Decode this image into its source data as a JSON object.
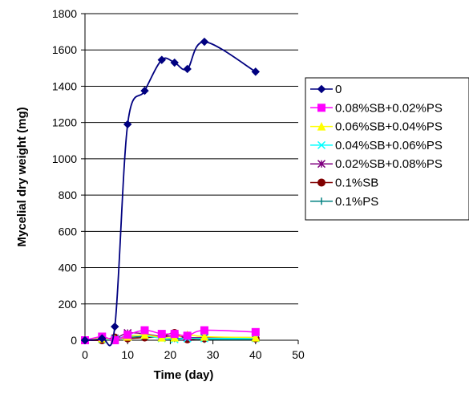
{
  "chart_data": {
    "type": "line",
    "title": "",
    "xlabel": "Time (day)",
    "ylabel": "Mycelial dry weight (mg)",
    "xlim": [
      0,
      50
    ],
    "ylim": [
      0,
      1800
    ],
    "xticks": [
      0,
      10,
      20,
      30,
      40,
      50
    ],
    "yticks": [
      0,
      200,
      400,
      600,
      800,
      1000,
      1200,
      1400,
      1600,
      1800
    ],
    "grid": "horizontal",
    "legend_position": "right",
    "series": [
      {
        "name": "0",
        "color": "#000080",
        "marker": "diamond",
        "points": [
          [
            0,
            0
          ],
          [
            4,
            10
          ],
          [
            7,
            75
          ],
          [
            10,
            1190
          ],
          [
            14,
            1375
          ],
          [
            18,
            1545
          ],
          [
            21,
            1530
          ],
          [
            24,
            1495
          ],
          [
            28,
            1645
          ],
          [
            40,
            1480
          ]
        ]
      },
      {
        "name": "0.08%SB+0.02%PS",
        "color": "#ff00ff",
        "marker": "square",
        "points": [
          [
            0,
            0
          ],
          [
            4,
            20
          ],
          [
            7,
            0
          ],
          [
            10,
            30
          ],
          [
            14,
            55
          ],
          [
            18,
            35
          ],
          [
            21,
            35
          ],
          [
            24,
            25
          ],
          [
            28,
            55
          ],
          [
            40,
            45
          ]
        ]
      },
      {
        "name": "0.06%SB+0.04%PS",
        "color": "#ffff00",
        "marker": "triangle",
        "points": [
          [
            0,
            0
          ],
          [
            4,
            10
          ],
          [
            7,
            5
          ],
          [
            10,
            20
          ],
          [
            14,
            30
          ],
          [
            18,
            15
          ],
          [
            21,
            15
          ],
          [
            24,
            30
          ],
          [
            28,
            20
          ],
          [
            40,
            15
          ]
        ]
      },
      {
        "name": "0.04%SB+0.06%PS",
        "color": "#00ffff",
        "marker": "x",
        "points": [
          [
            0,
            0
          ],
          [
            4,
            5
          ],
          [
            7,
            5
          ],
          [
            10,
            25
          ],
          [
            14,
            25
          ],
          [
            18,
            10
          ],
          [
            21,
            5
          ],
          [
            24,
            10
          ],
          [
            28,
            10
          ],
          [
            40,
            10
          ]
        ]
      },
      {
        "name": "0.02%SB+0.08%PS",
        "color": "#800080",
        "marker": "star",
        "points": [
          [
            0,
            0
          ],
          [
            4,
            10
          ],
          [
            7,
            10
          ],
          [
            10,
            40
          ],
          [
            14,
            35
          ],
          [
            18,
            20
          ],
          [
            21,
            25
          ],
          [
            24,
            15
          ],
          [
            28,
            15
          ],
          [
            40,
            15
          ]
        ]
      },
      {
        "name": "0.1%SB",
        "color": "#800000",
        "marker": "circle",
        "points": [
          [
            0,
            0
          ],
          [
            4,
            0
          ],
          [
            7,
            15
          ],
          [
            10,
            10
          ],
          [
            14,
            15
          ],
          [
            18,
            20
          ],
          [
            21,
            40
          ],
          [
            24,
            5
          ],
          [
            28,
            10
          ],
          [
            40,
            10
          ]
        ]
      },
      {
        "name": "0.1%PS",
        "color": "#008080",
        "marker": "plus",
        "points": [
          [
            0,
            0
          ],
          [
            4,
            5
          ],
          [
            7,
            5
          ],
          [
            10,
            15
          ],
          [
            14,
            20
          ],
          [
            18,
            15
          ],
          [
            21,
            10
          ],
          [
            24,
            10
          ],
          [
            28,
            5
          ],
          [
            40,
            5
          ]
        ]
      }
    ]
  }
}
